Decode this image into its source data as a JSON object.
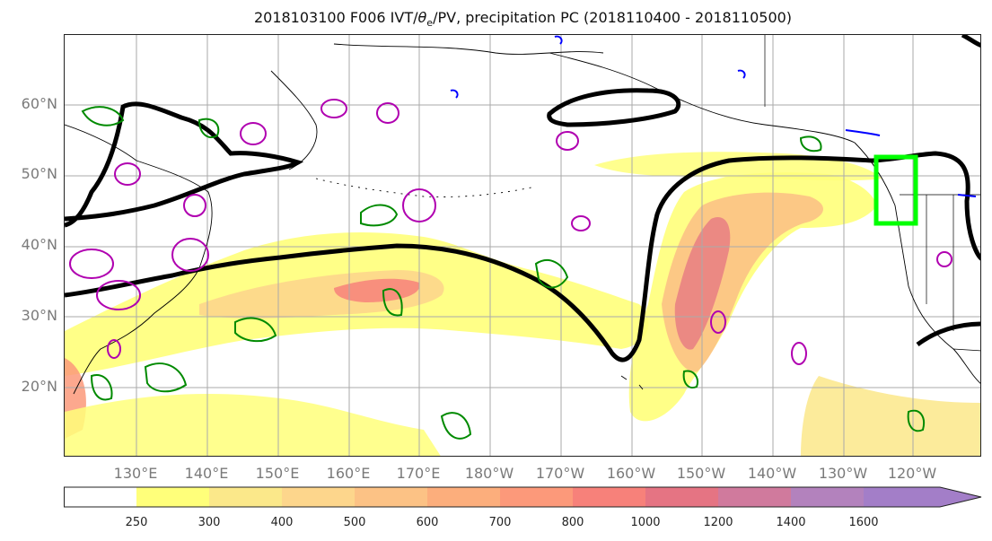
{
  "title_parts": {
    "pre": "2018103100 F006 IVT/",
    "theta": "θ",
    "sub": "e",
    "post": "/PV, precipitation PC (2018110400 - 2018110500)"
  },
  "lat_labels": [
    "60°N",
    "50°N",
    "40°N",
    "30°N",
    "20°N"
  ],
  "lon_labels": [
    "130°E",
    "140°E",
    "150°E",
    "160°E",
    "170°E",
    "180°W",
    "170°W",
    "160°W",
    "150°W",
    "140°W",
    "130°W",
    "120°W"
  ],
  "colorbar": {
    "ticks": [
      "250",
      "300",
      "400",
      "500",
      "600",
      "700",
      "800",
      "1000",
      "1200",
      "1400",
      "1600"
    ],
    "colors": [
      "#ffffff",
      "#ffff7a",
      "#fbe88a",
      "#fdd68c",
      "#fcc285",
      "#fcae7c",
      "#fc997a",
      "#f7817a",
      "#e57483",
      "#d07a9d",
      "#b382bd",
      "#a37ec8"
    ]
  },
  "colors": {
    "ivt_contour": "#000000",
    "pv_contour": "#b000b0",
    "theta_contour": "#008a00",
    "other_contour": "#0000ff",
    "highlight_box": "#00ff00"
  }
}
